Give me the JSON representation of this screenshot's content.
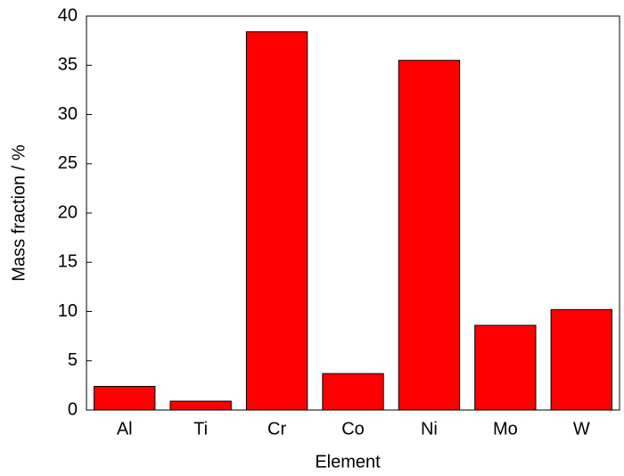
{
  "chart_data": {
    "type": "bar",
    "x_label": "Element",
    "y_label": "Mass fraction / %",
    "categories": [
      "Al",
      "Ti",
      "Cr",
      "Co",
      "Ni",
      "Mo",
      "W"
    ],
    "values": [
      2.4,
      0.9,
      38.4,
      3.7,
      35.5,
      8.6,
      10.2
    ],
    "color": "#ff0000",
    "ylim": [
      0,
      40
    ],
    "yticks": [
      0,
      5,
      10,
      15,
      20,
      25,
      30,
      35,
      40
    ],
    "grid": false
  }
}
